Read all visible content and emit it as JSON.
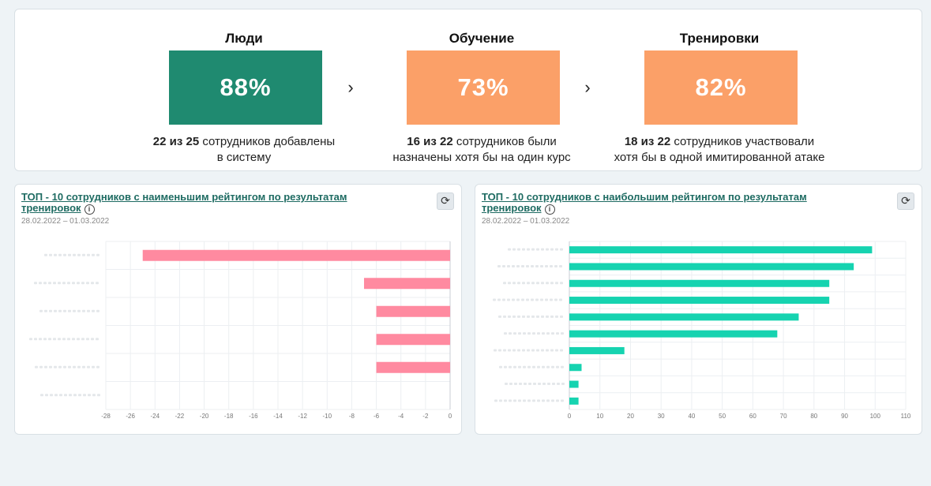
{
  "stats": [
    {
      "title": "Люди",
      "value": "88%",
      "color": "#1f8a70",
      "desc_bold": "22 из 25",
      "desc_rest": " сотрудников добавлены",
      "desc_line2": "в систему"
    },
    {
      "title": "Обучение",
      "value": "73%",
      "color": "#fba068",
      "desc_bold": "16 из 22",
      "desc_rest": " сотрудников были",
      "desc_line2": "назначены хотя бы на один курс"
    },
    {
      "title": "Тренировки",
      "value": "82%",
      "color": "#fba068",
      "desc_bold": "18 из 22",
      "desc_rest": " сотрудников участвовали",
      "desc_line2": "хотя бы в одной имитированной атаке"
    }
  ],
  "arrow_icon": "chevron-right-icon",
  "charts": {
    "lowest": {
      "title": "ТОП - 10 сотрудников с наименьшим рейтингом по результатам тренировок",
      "date": "28.02.2022 – 01.03.2022",
      "refresh_icon": "refresh-icon",
      "info_icon": "info-icon"
    },
    "highest": {
      "title": "ТОП - 10 сотрудников с наибольшим рейтингом по результатам тренировок",
      "date": "28.02.2022 – 01.03.2022",
      "refresh_icon": "refresh-icon",
      "info_icon": "info-icon"
    }
  },
  "chart_data": [
    {
      "type": "bar",
      "orientation": "horizontal",
      "categories": [
        "",
        "",
        "",
        "",
        "",
        ""
      ],
      "values": [
        -25,
        -7,
        -6,
        -6,
        -6,
        0
      ],
      "xlim": [
        -28,
        0
      ],
      "xticks": [
        -28,
        -26,
        -24,
        -22,
        -20,
        -18,
        -16,
        -14,
        -12,
        -10,
        -8,
        -6,
        -4,
        -2,
        0
      ],
      "color": "#ff8aa0",
      "grid": true
    },
    {
      "type": "bar",
      "orientation": "horizontal",
      "categories": [
        "",
        "",
        "",
        "",
        "",
        "",
        "",
        "",
        "",
        ""
      ],
      "values": [
        99,
        93,
        85,
        85,
        75,
        68,
        18,
        4,
        3,
        3
      ],
      "xlim": [
        0,
        110
      ],
      "xticks": [
        0,
        10,
        20,
        30,
        40,
        50,
        60,
        70,
        80,
        90,
        100,
        110
      ],
      "color": "#16d3b0",
      "grid": true
    }
  ]
}
